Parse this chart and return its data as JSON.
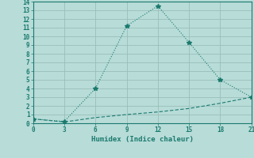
{
  "line1_x": [
    0,
    3,
    6,
    9,
    12,
    15,
    18,
    21
  ],
  "line1_y": [
    0.5,
    0.2,
    4.0,
    11.2,
    13.5,
    9.3,
    5.0,
    3.0
  ],
  "line2_x": [
    0,
    3,
    6,
    9,
    12,
    15,
    18,
    21
  ],
  "line2_y": [
    0.5,
    0.15,
    0.65,
    1.0,
    1.3,
    1.7,
    2.3,
    3.0
  ],
  "line_color": "#1a7a6e",
  "bg_color": "#b8dcd8",
  "grid_color": "#9abfbb",
  "xlabel": "Humidex (Indice chaleur)",
  "ylim": [
    0,
    14
  ],
  "xlim": [
    0,
    21
  ],
  "xticks": [
    0,
    3,
    6,
    9,
    12,
    15,
    18,
    21
  ],
  "yticks": [
    0,
    1,
    2,
    3,
    4,
    5,
    6,
    7,
    8,
    9,
    10,
    11,
    12,
    13,
    14
  ]
}
